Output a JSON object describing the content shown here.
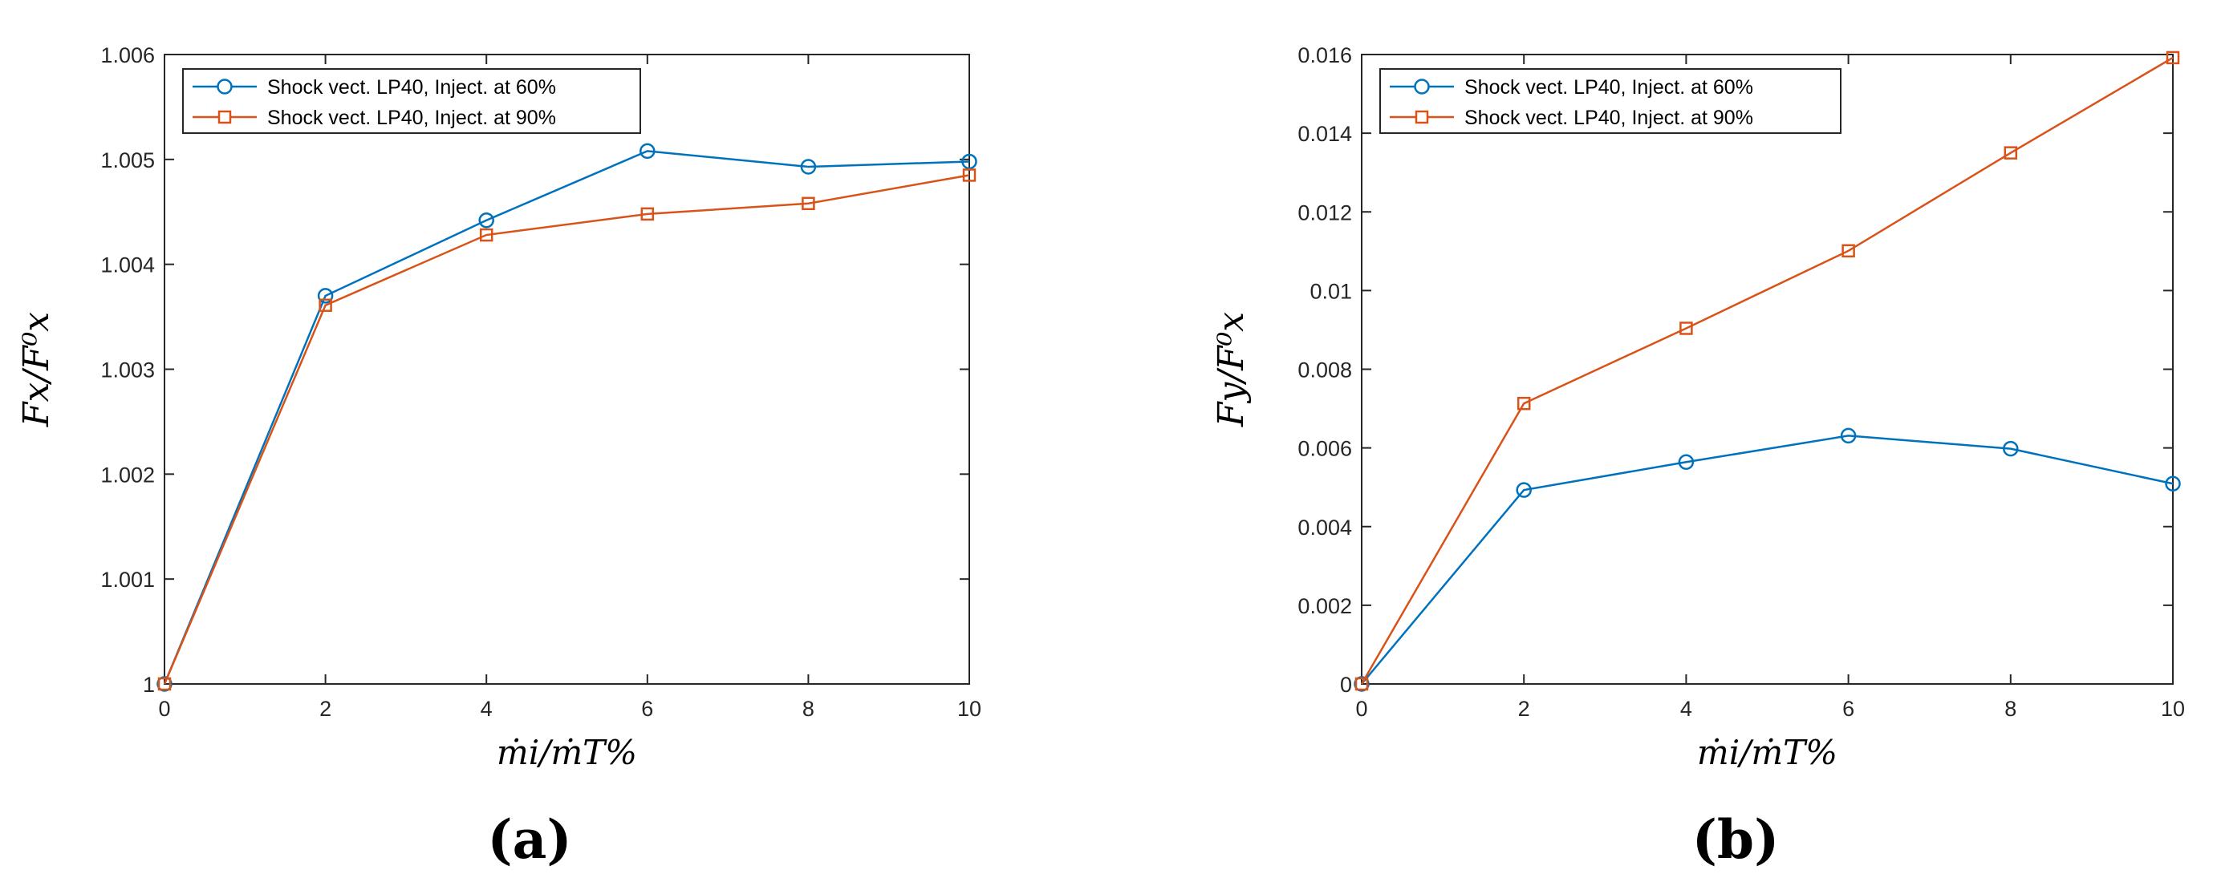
{
  "colors": {
    "series_60": "#0072BD",
    "series_90": "#D95319",
    "axes": "#262626",
    "background": "#ffffff"
  },
  "chart_data": [
    {
      "type": "line",
      "panel_label": "(a)",
      "xlabel": "ṁi/ṁT%",
      "ylabel": "Fx/F⁰x",
      "xlim": [
        0,
        10
      ],
      "ylim": [
        1,
        1.006
      ],
      "x_ticks": [
        0,
        2,
        4,
        6,
        8,
        10
      ],
      "y_ticks": [
        1,
        1.001,
        1.002,
        1.003,
        1.004,
        1.005,
        1.006
      ],
      "x_tick_labels": [
        "0",
        "2",
        "4",
        "6",
        "8",
        "10"
      ],
      "y_tick_labels": [
        "1",
        "1.001",
        "1.002",
        "1.003",
        "1.004",
        "1.005",
        "1.006"
      ],
      "grid": false,
      "legend_position": "top-left",
      "x": [
        0,
        2,
        4,
        6,
        8,
        10
      ],
      "series": [
        {
          "name": "Shock vect. LP40, Inject. at 60%",
          "marker": "circle",
          "color": "#0072BD",
          "values": [
            1.0,
            1.0037,
            1.00442,
            1.00508,
            1.00493,
            1.00498
          ]
        },
        {
          "name": "Shock vect. LP40, Inject. at 90%",
          "marker": "square",
          "color": "#D95319",
          "values": [
            1.0,
            1.00361,
            1.00428,
            1.00448,
            1.00458,
            1.00485
          ]
        }
      ]
    },
    {
      "type": "line",
      "panel_label": "(b)",
      "xlabel": "ṁi/ṁT%",
      "ylabel": "Fy/F⁰x",
      "xlim": [
        0,
        10
      ],
      "ylim": [
        0,
        0.016
      ],
      "x_ticks": [
        0,
        2,
        4,
        6,
        8,
        10
      ],
      "y_ticks": [
        0,
        0.002,
        0.004,
        0.006,
        0.008,
        0.01,
        0.012,
        0.014,
        0.016
      ],
      "x_tick_labels": [
        "0",
        "2",
        "4",
        "6",
        "8",
        "10"
      ],
      "y_tick_labels": [
        "0",
        "0.002",
        "0.004",
        "0.006",
        "0.008",
        "0.01",
        "0.012",
        "0.014",
        "0.016"
      ],
      "grid": false,
      "legend_position": "top-left",
      "x": [
        0,
        2,
        4,
        6,
        8,
        10
      ],
      "series": [
        {
          "name": "Shock vect. LP40, Inject. at 60%",
          "marker": "circle",
          "color": "#0072BD",
          "values": [
            0.0,
            0.00493,
            0.00564,
            0.00631,
            0.00598,
            0.00509
          ]
        },
        {
          "name": "Shock vect. LP40, Inject. at 90%",
          "marker": "square",
          "color": "#D95319",
          "values": [
            0.0,
            0.00713,
            0.00904,
            0.01101,
            0.0135,
            0.01592
          ]
        }
      ]
    }
  ]
}
